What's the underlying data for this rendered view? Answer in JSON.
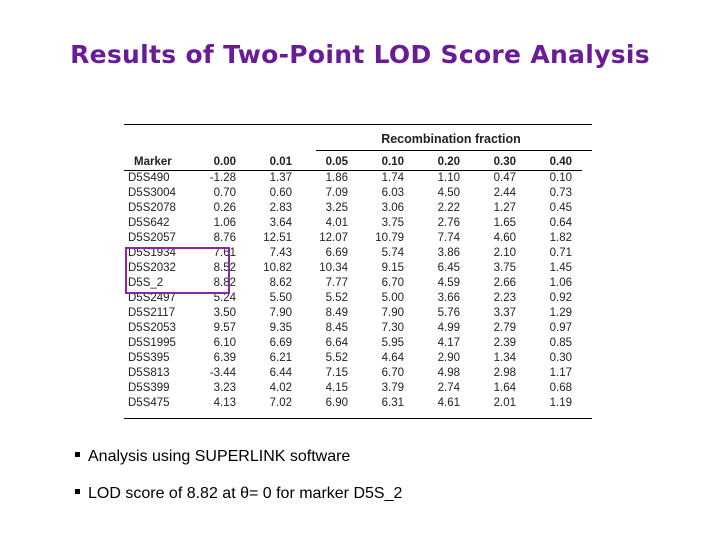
{
  "title": "Results of Two-Point LOD Score Analysis",
  "table": {
    "group_header": "Recombination fraction",
    "columns": [
      "Marker",
      "0.00",
      "0.01",
      "0.05",
      "0.10",
      "0.20",
      "0.30",
      "0.40"
    ],
    "rows": [
      [
        "D5S490",
        "-1.28",
        "1.37",
        "1.86",
        "1.74",
        "1.10",
        "0.47",
        "0.10"
      ],
      [
        "D5S3004",
        "0.70",
        "0.60",
        "7.09",
        "6.03",
        "4.50",
        "2.44",
        "0.73"
      ],
      [
        "D5S2078",
        "0.26",
        "2.83",
        "3.25",
        "3.06",
        "2.22",
        "1.27",
        "0.45"
      ],
      [
        "D5S642",
        "1.06",
        "3.64",
        "4.01",
        "3.75",
        "2.76",
        "1.65",
        "0.64"
      ],
      [
        "D5S2057",
        "8.76",
        "12.51",
        "12.07",
        "10.79",
        "7.74",
        "4.60",
        "1.82"
      ],
      [
        "D5S1934",
        "7.61",
        "7.43",
        "6.69",
        "5.74",
        "3.86",
        "2.10",
        "0.71"
      ],
      [
        "D5S2032",
        "8.52",
        "10.82",
        "10.34",
        "9.15",
        "6.45",
        "3.75",
        "1.45"
      ],
      [
        "D5S_2",
        "8.82",
        "8.62",
        "7.77",
        "6.70",
        "4.59",
        "2.66",
        "1.06"
      ],
      [
        "D5S2497",
        "5.24",
        "5.50",
        "5.52",
        "5.00",
        "3.66",
        "2.23",
        "0.92"
      ],
      [
        "D5S2117",
        "3.50",
        "7.90",
        "8.49",
        "7.90",
        "5.76",
        "3.37",
        "1.29"
      ],
      [
        "D5S2053",
        "9.57",
        "9.35",
        "8.45",
        "7.30",
        "4.99",
        "2.79",
        "0.97"
      ],
      [
        "D5S1995",
        "6.10",
        "6.69",
        "6.64",
        "5.95",
        "4.17",
        "2.39",
        "0.85"
      ],
      [
        "D5S395",
        "6.39",
        "6.21",
        "5.52",
        "4.64",
        "2.90",
        "1.34",
        "0.30"
      ],
      [
        "D5S813",
        "-3.44",
        "6.44",
        "7.15",
        "6.70",
        "4.98",
        "2.98",
        "1.17"
      ],
      [
        "D5S399",
        "3.23",
        "4.02",
        "4.15",
        "3.79",
        "2.74",
        "1.64",
        "0.68"
      ],
      [
        "D5S475",
        "4.13",
        "7.02",
        "6.90",
        "6.31",
        "4.61",
        "2.01",
        "1.19"
      ]
    ]
  },
  "bullets": [
    "Analysis using SUPERLINK software",
    "LOD score of 8.82 at θ= 0 for marker D5S_2"
  ]
}
